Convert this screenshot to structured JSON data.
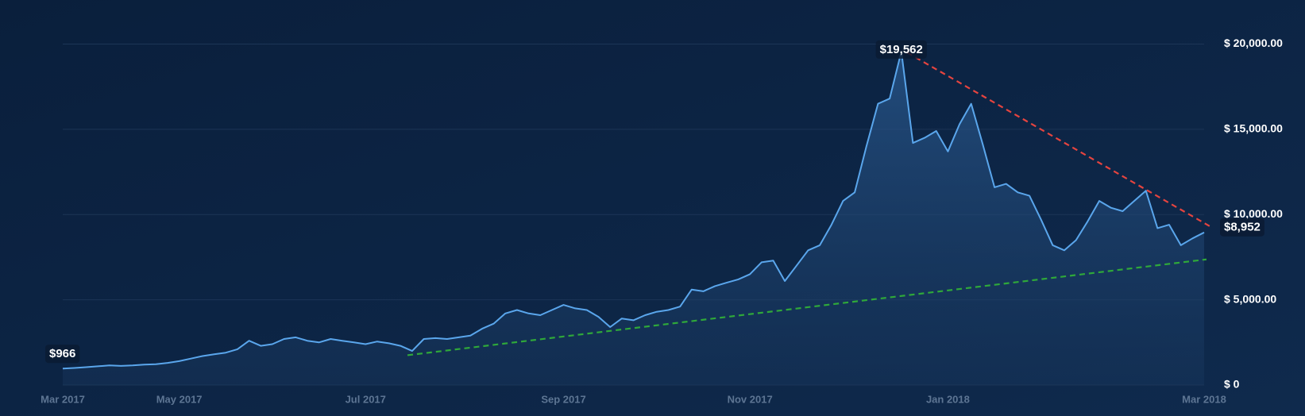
{
  "chart_data": {
    "type": "line",
    "categories": [
      "Mar 2017",
      null,
      null,
      null,
      null,
      null,
      null,
      null,
      null,
      null,
      "May 2017",
      null,
      null,
      null,
      null,
      null,
      null,
      null,
      null,
      null,
      null,
      null,
      null,
      null,
      null,
      null,
      "Jul 2017",
      null,
      null,
      null,
      null,
      null,
      null,
      null,
      null,
      null,
      null,
      null,
      null,
      null,
      null,
      null,
      null,
      "Sep 2017",
      null,
      null,
      null,
      null,
      null,
      null,
      null,
      null,
      null,
      null,
      null,
      null,
      null,
      null,
      null,
      "Nov 2017",
      null,
      null,
      null,
      null,
      null,
      null,
      null,
      null,
      null,
      null,
      null,
      null,
      null,
      null,
      null,
      null,
      "Jan 2018",
      null,
      null,
      null,
      null,
      null,
      null,
      null,
      null,
      null,
      null,
      null,
      null,
      null,
      null,
      null,
      null,
      null,
      null,
      null,
      null,
      null,
      "Mar 2018"
    ],
    "series": [
      {
        "color": "#5aa6ec",
        "values": [
          966,
          1000,
          1050,
          1100,
          1150,
          1120,
          1150,
          1200,
          1220,
          1300,
          1400,
          1550,
          1700,
          1800,
          1900,
          2100,
          2600,
          2300,
          2400,
          2700,
          2800,
          2600,
          2500,
          2700,
          2600,
          2500,
          2400,
          2550,
          2450,
          2300,
          2000,
          2700,
          2750,
          2700,
          2800,
          2900,
          3300,
          3600,
          4200,
          4400,
          4200,
          4100,
          4400,
          4700,
          4500,
          4400,
          4000,
          3400,
          3900,
          3800,
          4100,
          4300,
          4400,
          4600,
          5600,
          5500,
          5800,
          6000,
          6200,
          6500,
          7200,
          7300,
          6100,
          7000,
          7900,
          8200,
          9400,
          10800,
          11300,
          14000,
          16500,
          16800,
          19562,
          14200,
          14500,
          14900,
          13700,
          15300,
          16500,
          14100,
          11600,
          11800,
          11300,
          11100,
          9700,
          8200,
          7900,
          8500,
          9600,
          10800,
          10400,
          10200,
          10800,
          11400,
          9200,
          9400,
          8200,
          8600,
          8952
        ],
        "value_labels": [
          "$966",
          null,
          null,
          null,
          null,
          null,
          null,
          null,
          null,
          null,
          null,
          null,
          null,
          null,
          null,
          null,
          null,
          null,
          null,
          null,
          null,
          null,
          null,
          null,
          null,
          null,
          null,
          null,
          null,
          null,
          null,
          null,
          null,
          null,
          null,
          null,
          null,
          null,
          null,
          null,
          null,
          null,
          null,
          null,
          null,
          null,
          null,
          null,
          null,
          null,
          null,
          null,
          null,
          null,
          null,
          null,
          null,
          null,
          null,
          null,
          null,
          null,
          null,
          null,
          null,
          null,
          null,
          null,
          null,
          null,
          null,
          null,
          "$19,562",
          null,
          null,
          null,
          null,
          null,
          null,
          null,
          null,
          null,
          null,
          null,
          null,
          null,
          null,
          null,
          null,
          null,
          null,
          null,
          null,
          null,
          null,
          null,
          null,
          null,
          "$8,952"
        ]
      }
    ],
    "ylim": [
      0,
      20000
    ],
    "yticks": [
      {
        "value": 0,
        "label": "$ 0"
      },
      {
        "value": 5000,
        "label": "$ 5,000.00"
      },
      {
        "value": 10000,
        "label": "$ 10,000.00"
      },
      {
        "value": 15000,
        "label": "$ 15,000.00"
      },
      {
        "value": 20000,
        "label": "$ 20,000.00"
      }
    ],
    "grid": true,
    "trendlines": [
      {
        "color": "#e5443f",
        "x": [
          72.5,
          98.6
        ],
        "y": [
          19500,
          9270
        ]
      },
      {
        "color": "#2fa83a",
        "x": [
          29.6,
          98.2
        ],
        "y": [
          1750,
          7370
        ]
      }
    ]
  }
}
